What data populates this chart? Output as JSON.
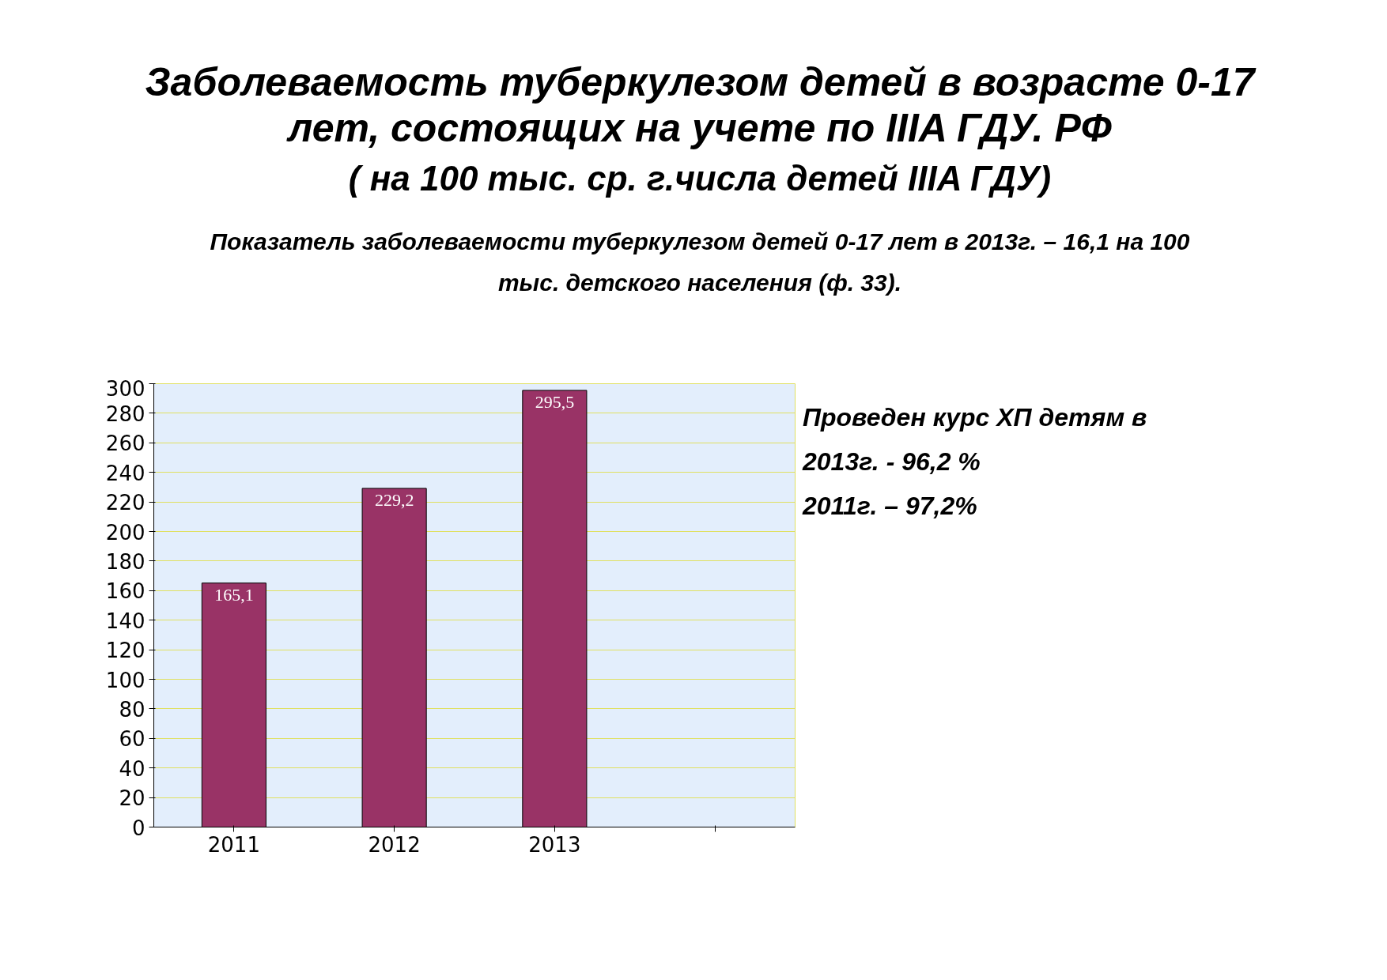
{
  "chart_data": {
    "type": "bar",
    "title": "Заболеваемость туберкулезом детей в возрасте 0-17 лет, состоящих на учете по IIIA ГДУ. РФ",
    "subtitle": "( на 100 тыс. ср. г.числа детей IIIA ГДУ)",
    "annotations": [
      "Показатель заболеваемости туберкулезом детей 0-17 лет в 2013г. – 16,1 на 100 тыс. детского населения (ф. 33).",
      "Проведен курс ХП детям в",
      "2013г. - 96,2 %",
      "2011г. – 97,2%"
    ],
    "categories": [
      "2011",
      "2012",
      "2013",
      null
    ],
    "values": [
      165.1,
      229.2,
      295.5,
      null
    ],
    "value_labels": [
      "165,1",
      "229,2",
      "295,5",
      null
    ],
    "color": "#993366",
    "ylim": [
      0,
      300
    ],
    "yticks": [
      0,
      20,
      40,
      60,
      80,
      100,
      120,
      140,
      160,
      180,
      200,
      220,
      240,
      260,
      280,
      300
    ],
    "grid": "y"
  }
}
